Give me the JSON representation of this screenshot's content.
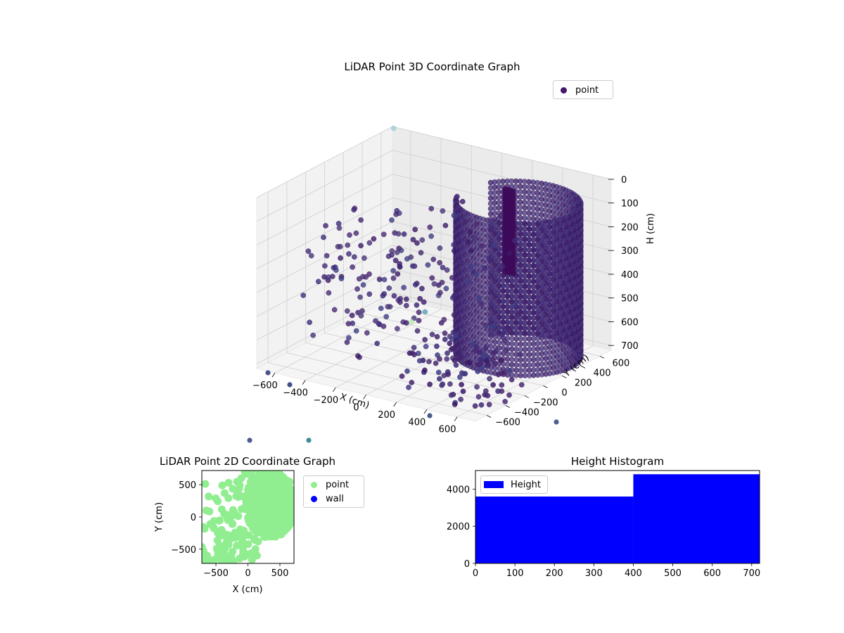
{
  "chart_data": [
    {
      "type": "scatter",
      "title": "LiDAR Point 3D Coordinate Graph",
      "xlabel": "X (cm)",
      "ylabel": "Y (cm)",
      "zlabel": "H (cm)",
      "xlim": [
        -720,
        720
      ],
      "ylim": [
        -720,
        720
      ],
      "zlim": [
        720,
        0
      ],
      "xticks": [
        "−600",
        "−400",
        "−200",
        "0",
        "200",
        "400",
        "600"
      ],
      "yticks": [
        "−600",
        "−400",
        "−200",
        "0",
        "200",
        "400",
        "600"
      ],
      "zticks": [
        "0",
        "100",
        "200",
        "300",
        "400",
        "500",
        "600",
        "700"
      ],
      "series": [
        {
          "name": "point",
          "color": "#44186b",
          "ring": {
            "center_x": 400,
            "center_y": 250,
            "radius": 350,
            "start_deg": -160,
            "end_deg": 150,
            "h_min": 50,
            "h_max": 700
          },
          "sample_points": [
            {
              "x": -600,
              "y": 650,
              "h": 420
            },
            {
              "x": -450,
              "y": 500,
              "h": 500
            },
            {
              "x": -300,
              "y": 300,
              "h": 600
            },
            {
              "x": -100,
              "y": 600,
              "h": 350
            },
            {
              "x": 50,
              "y": 400,
              "h": 550
            },
            {
              "x": 150,
              "y": -100,
              "h": 650
            },
            {
              "x": -500,
              "y": 0,
              "h": 600
            },
            {
              "x": -250,
              "y": -200,
              "h": 650
            },
            {
              "x": 300,
              "y": -400,
              "h": 700
            }
          ]
        }
      ],
      "legend": {
        "placement": "top-right",
        "entries": [
          "point"
        ]
      },
      "grid": true
    },
    {
      "type": "scatter",
      "title": "LiDAR Point 2D Coordinate Graph",
      "xlabel": "X (cm)",
      "ylabel": "Y (cm)",
      "xlim": [
        -720,
        720
      ],
      "ylim": [
        -720,
        720
      ],
      "xticks": [
        "−500",
        "0",
        "500"
      ],
      "yticks": [
        "−500",
        "0",
        "500"
      ],
      "series": [
        {
          "name": "point",
          "color": "#90ee90"
        },
        {
          "name": "wall",
          "color": "#0000ff"
        }
      ],
      "legend": {
        "placement": "outside-right",
        "entries": [
          "point",
          "wall"
        ]
      }
    },
    {
      "type": "bar",
      "title": "Height Histogram",
      "xlim": [
        0,
        720
      ],
      "ylim": [
        0,
        5000
      ],
      "xticks": [
        "0",
        "100",
        "200",
        "300",
        "400",
        "500",
        "600",
        "700"
      ],
      "yticks": [
        "0",
        "2000",
        "4000"
      ],
      "bins": [
        {
          "x0": 0,
          "x1": 400,
          "count": 3600
        },
        {
          "x0": 400,
          "x1": 720,
          "count": 4800
        }
      ],
      "color": "#0000ff",
      "legend": {
        "placement": "upper-left",
        "entries": [
          "Height"
        ]
      }
    }
  ]
}
